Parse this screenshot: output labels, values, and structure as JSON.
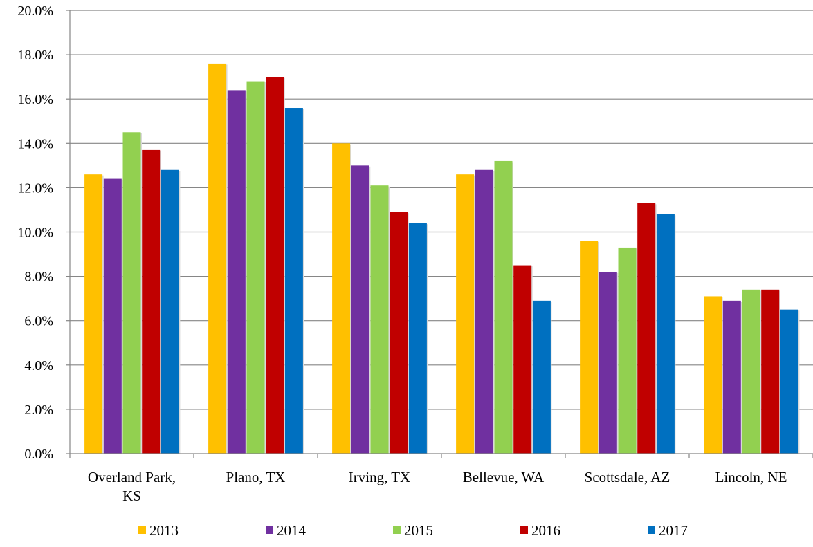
{
  "chart_data": {
    "type": "bar",
    "title": "",
    "xlabel": "",
    "ylabel": "",
    "ylim": [
      0,
      20
    ],
    "yticks": [
      "0.0%",
      "2.0%",
      "4.0%",
      "6.0%",
      "8.0%",
      "10.0%",
      "12.0%",
      "14.0%",
      "16.0%",
      "18.0%",
      "20.0%"
    ],
    "grid": true,
    "legend_position": "bottom",
    "categories": [
      [
        "Overland Park,",
        "KS"
      ],
      [
        "Plano, TX"
      ],
      [
        "Irving, TX"
      ],
      [
        "Bellevue, WA"
      ],
      [
        "Scottsdale, AZ"
      ],
      [
        "Lincoln, NE"
      ]
    ],
    "series": [
      {
        "name": "2013",
        "color": "#FFC000",
        "values": [
          12.6,
          17.6,
          14.0,
          12.6,
          9.6,
          7.1
        ]
      },
      {
        "name": "2014",
        "color": "#7030A0",
        "values": [
          12.4,
          16.4,
          13.0,
          12.8,
          8.2,
          6.9
        ]
      },
      {
        "name": "2015",
        "color": "#92D050",
        "values": [
          14.5,
          16.8,
          12.1,
          13.2,
          9.3,
          7.4
        ]
      },
      {
        "name": "2016",
        "color": "#C00000",
        "values": [
          13.7,
          17.0,
          10.9,
          8.5,
          11.3,
          7.4
        ]
      },
      {
        "name": "2017",
        "color": "#0070C0",
        "values": [
          12.8,
          15.6,
          10.4,
          6.9,
          10.8,
          6.5
        ]
      }
    ]
  }
}
